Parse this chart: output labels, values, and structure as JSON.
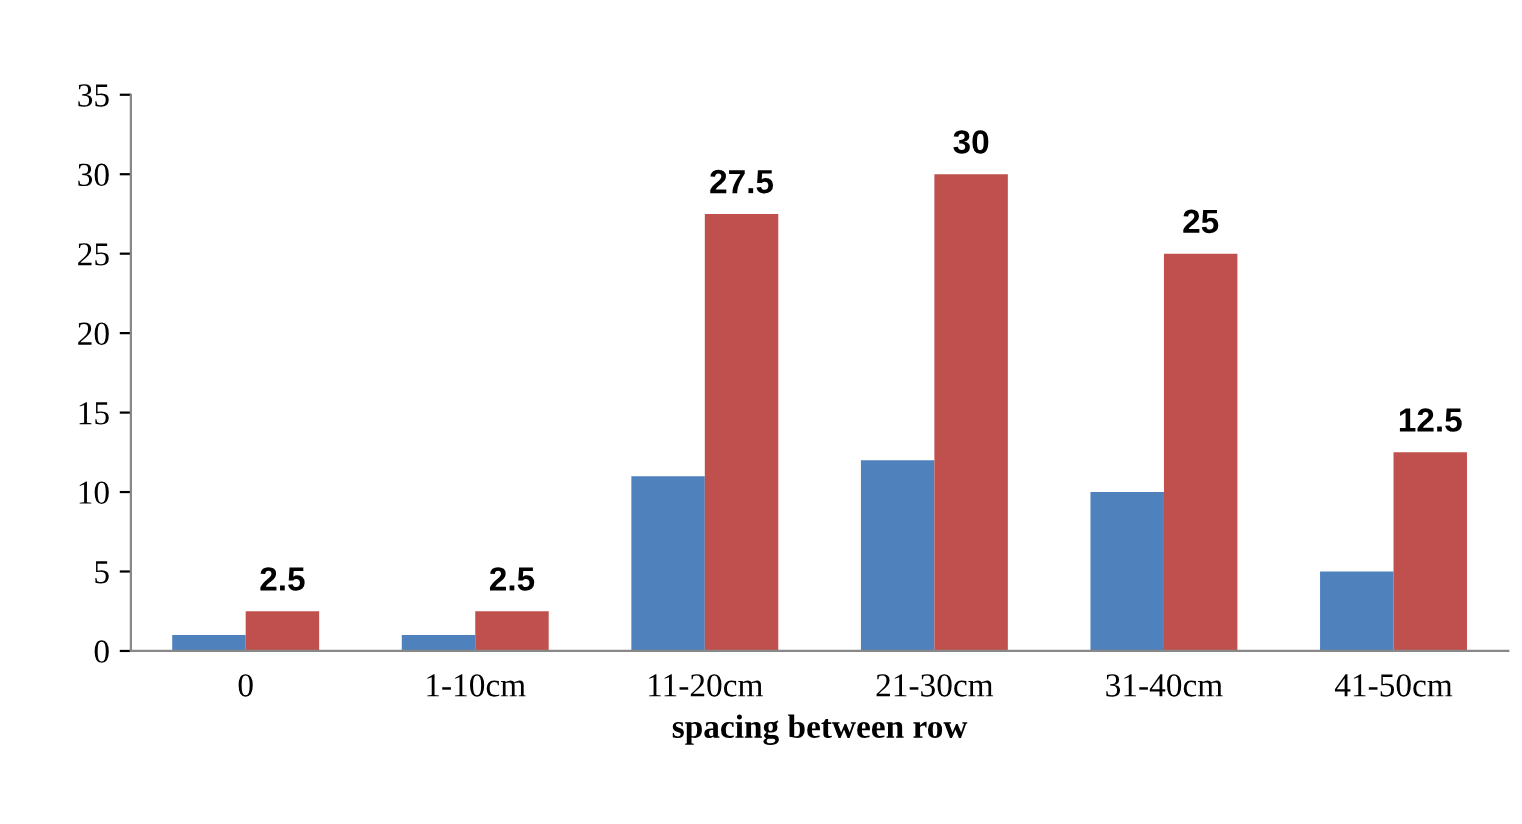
{
  "chart_data": {
    "type": "bar",
    "xlabel": "spacing between row",
    "categories": [
      "0",
      "1-10cm",
      "11-20cm",
      "21-30cm",
      "31-40cm",
      "41-50cm"
    ],
    "series": [
      {
        "color": "#4f81bd",
        "values": [
          1,
          1,
          11,
          12,
          10,
          5
        ]
      },
      {
        "color": "#c0504d",
        "values": [
          2.5,
          2.5,
          27.5,
          30,
          25,
          12.5
        ],
        "value_labels": [
          "2.5",
          "2.5",
          "27.5",
          "30",
          "25",
          "12.5"
        ]
      }
    ],
    "ylim": [
      0,
      35
    ],
    "yticks": [
      0,
      5,
      10,
      15,
      20,
      25,
      30,
      35
    ],
    "grid": false
  }
}
